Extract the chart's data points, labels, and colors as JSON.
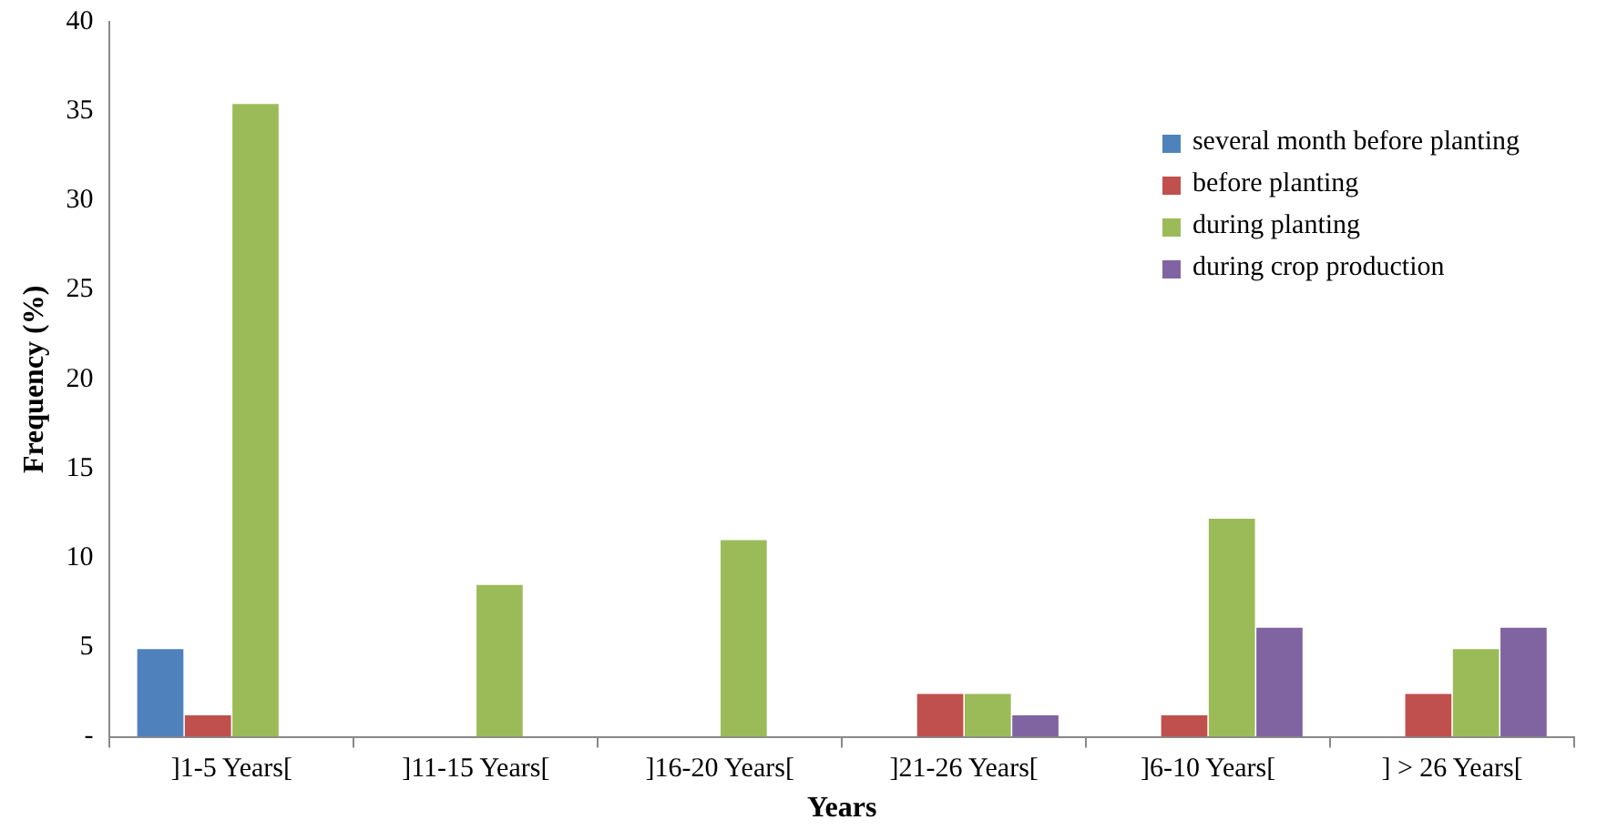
{
  "chart_data": {
    "type": "bar",
    "xlabel": "Years",
    "ylabel": "Frequency (%)",
    "categories": [
      "]1-5 Years[",
      "]11-15 Years[",
      "]16-20 Years[",
      "]21-26 Years[",
      "]6-10 Years[",
      "] > 26 Years["
    ],
    "series": [
      {
        "name": "several month before planting",
        "color": "#4f81bd",
        "values": [
          4.9,
          0,
          0,
          0,
          0,
          0
        ]
      },
      {
        "name": "before planting",
        "color": "#c0504d",
        "values": [
          1.2,
          0,
          0,
          2.4,
          1.2,
          2.4
        ]
      },
      {
        "name": "during planting",
        "color": "#9bbb59",
        "values": [
          35.4,
          8.5,
          11.0,
          2.4,
          12.2,
          4.9
        ]
      },
      {
        "name": "during crop production",
        "color": "#8064a2",
        "values": [
          0,
          0,
          0,
          1.2,
          6.1,
          6.1
        ]
      }
    ],
    "ylim": [
      0,
      40
    ],
    "yticks": [
      {
        "value": 0,
        "label": "-"
      },
      5,
      10,
      15,
      20,
      25,
      30,
      35,
      40
    ],
    "grid": false,
    "legend": "top right"
  }
}
